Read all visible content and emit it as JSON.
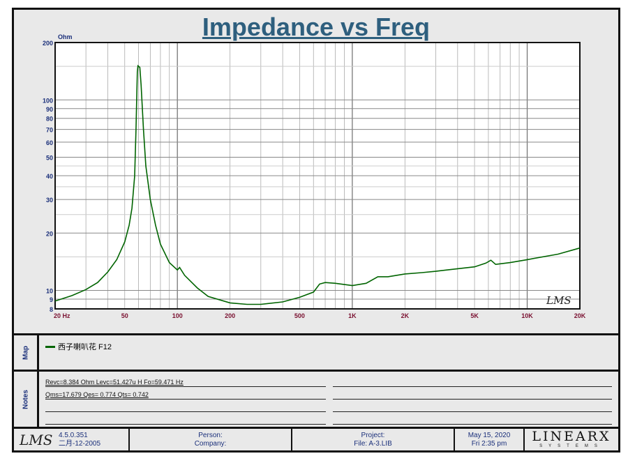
{
  "title": "Impedance vs Freq",
  "map": {
    "label": "Map",
    "legend": "西子喇叭花 F12"
  },
  "notes": {
    "label": "Notes",
    "line1": "Revc=8.384 Ohm  Levc=51.427u H  Fo=59.471 Hz",
    "line2": "Qms=17.679  Qes= 0.774  Qts= 0.742"
  },
  "footer": {
    "logo": "LMS",
    "version": "4.5.0.351",
    "date_build": "二月-12-2005",
    "person": "Person:",
    "company": "Company:",
    "project": "Project:",
    "file": "File: A-3.LIB",
    "date": "May 15, 2020",
    "time": "Fri  2:35 pm",
    "brand": "LINEARX",
    "brand_sub": "SYSTEMS"
  },
  "colors": {
    "curve": "#006400",
    "title": "#2e5f7e",
    "ytick": "#1a2f7a",
    "xtick": "#7a1030"
  },
  "chart_data": {
    "type": "line",
    "title": "Impedance vs Freq",
    "xlabel": "Hz",
    "ylabel": "Ohm",
    "xscale": "log",
    "yscale": "log",
    "xlim": [
      20,
      20000
    ],
    "ylim": [
      8,
      200
    ],
    "grid": true,
    "watermark": "LMS",
    "xticks": [
      {
        "v": 20,
        "l": "20  Hz"
      },
      {
        "v": 50,
        "l": "50"
      },
      {
        "v": 100,
        "l": "100"
      },
      {
        "v": 200,
        "l": "200"
      },
      {
        "v": 500,
        "l": "500"
      },
      {
        "v": 1000,
        "l": "1K"
      },
      {
        "v": 2000,
        "l": "2K"
      },
      {
        "v": 5000,
        "l": "5K"
      },
      {
        "v": 10000,
        "l": "10K"
      },
      {
        "v": 20000,
        "l": "20K"
      }
    ],
    "yticks": [
      {
        "v": 8,
        "l": "8"
      },
      {
        "v": 9,
        "l": "9"
      },
      {
        "v": 10,
        "l": "10"
      },
      {
        "v": 20,
        "l": "20"
      },
      {
        "v": 30,
        "l": "30"
      },
      {
        "v": 40,
        "l": "40"
      },
      {
        "v": 50,
        "l": "50"
      },
      {
        "v": 60,
        "l": "60"
      },
      {
        "v": 70,
        "l": "70"
      },
      {
        "v": 80,
        "l": "80"
      },
      {
        "v": 90,
        "l": "90"
      },
      {
        "v": 100,
        "l": "100"
      },
      {
        "v": 200,
        "l": "200"
      }
    ],
    "series": [
      {
        "name": "西子喇叭花 F12",
        "x": [
          20,
          25,
          30,
          35,
          40,
          45,
          50,
          53,
          55,
          57,
          58,
          59,
          59.5,
          61,
          62,
          64,
          66,
          70,
          75,
          80,
          90,
          100,
          103,
          110,
          130,
          150,
          200,
          250,
          300,
          400,
          500,
          600,
          650,
          700,
          800,
          1000,
          1200,
          1400,
          1600,
          2000,
          2500,
          3000,
          4000,
          5000,
          5800,
          6200,
          6600,
          8000,
          10000,
          15000,
          20000
        ],
        "y": [
          8.8,
          9.4,
          10.1,
          11,
          12.5,
          14.5,
          18,
          22,
          27,
          40,
          70,
          140,
          151,
          148,
          120,
          70,
          45,
          30,
          22,
          17.5,
          14,
          12.8,
          13.2,
          12,
          10.3,
          9.3,
          8.6,
          8.45,
          8.45,
          8.7,
          9.2,
          9.8,
          10.8,
          11,
          10.9,
          10.6,
          10.9,
          11.8,
          11.8,
          12.2,
          12.4,
          12.6,
          13,
          13.3,
          13.9,
          14.4,
          13.7,
          14,
          14.5,
          15.5,
          16.7
        ]
      }
    ]
  }
}
